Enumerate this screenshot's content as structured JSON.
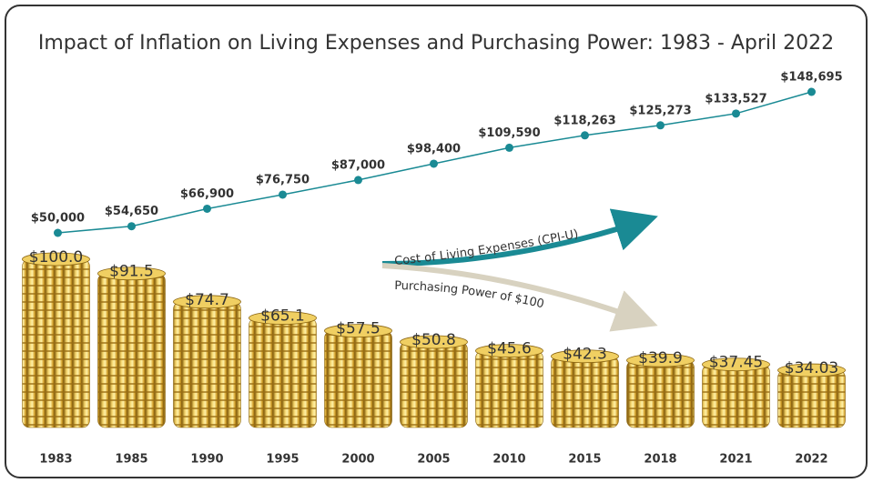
{
  "chart_data": {
    "type": "combo",
    "title": "Impact of Inflation on Living Expenses and Purchasing Power: 1983 - April 2022",
    "categories": [
      "1983",
      "1985",
      "1990",
      "1995",
      "2000",
      "2005",
      "2010",
      "2015",
      "2018",
      "2021",
      "2022"
    ],
    "series": [
      {
        "name": "Cost of Living Expenses (CPI-U)",
        "type": "line",
        "color": "#1a8a94",
        "values": [
          50000,
          54650,
          66900,
          76750,
          87000,
          98400,
          109590,
          118263,
          125273,
          133527,
          148695
        ],
        "value_labels": [
          "$50,000",
          "$54,650",
          "$66,900",
          "$76,750",
          "$87,000",
          "$98,400",
          "$109,590",
          "$118,263",
          "$125,273",
          "$133,527",
          "$148,695"
        ]
      },
      {
        "name": "Purchasing Power of $100",
        "type": "bar",
        "color": "#d9b13a",
        "values": [
          100.0,
          91.5,
          74.7,
          65.1,
          57.5,
          50.8,
          45.6,
          42.3,
          39.9,
          37.45,
          34.03
        ],
        "value_labels": [
          "$100.0",
          "$91.5",
          "$74.7",
          "$65.1",
          "$57.5",
          "$50.8",
          "$45.6",
          "$42.3",
          "$39.9",
          "$37.45",
          "$34.03"
        ]
      }
    ]
  }
}
